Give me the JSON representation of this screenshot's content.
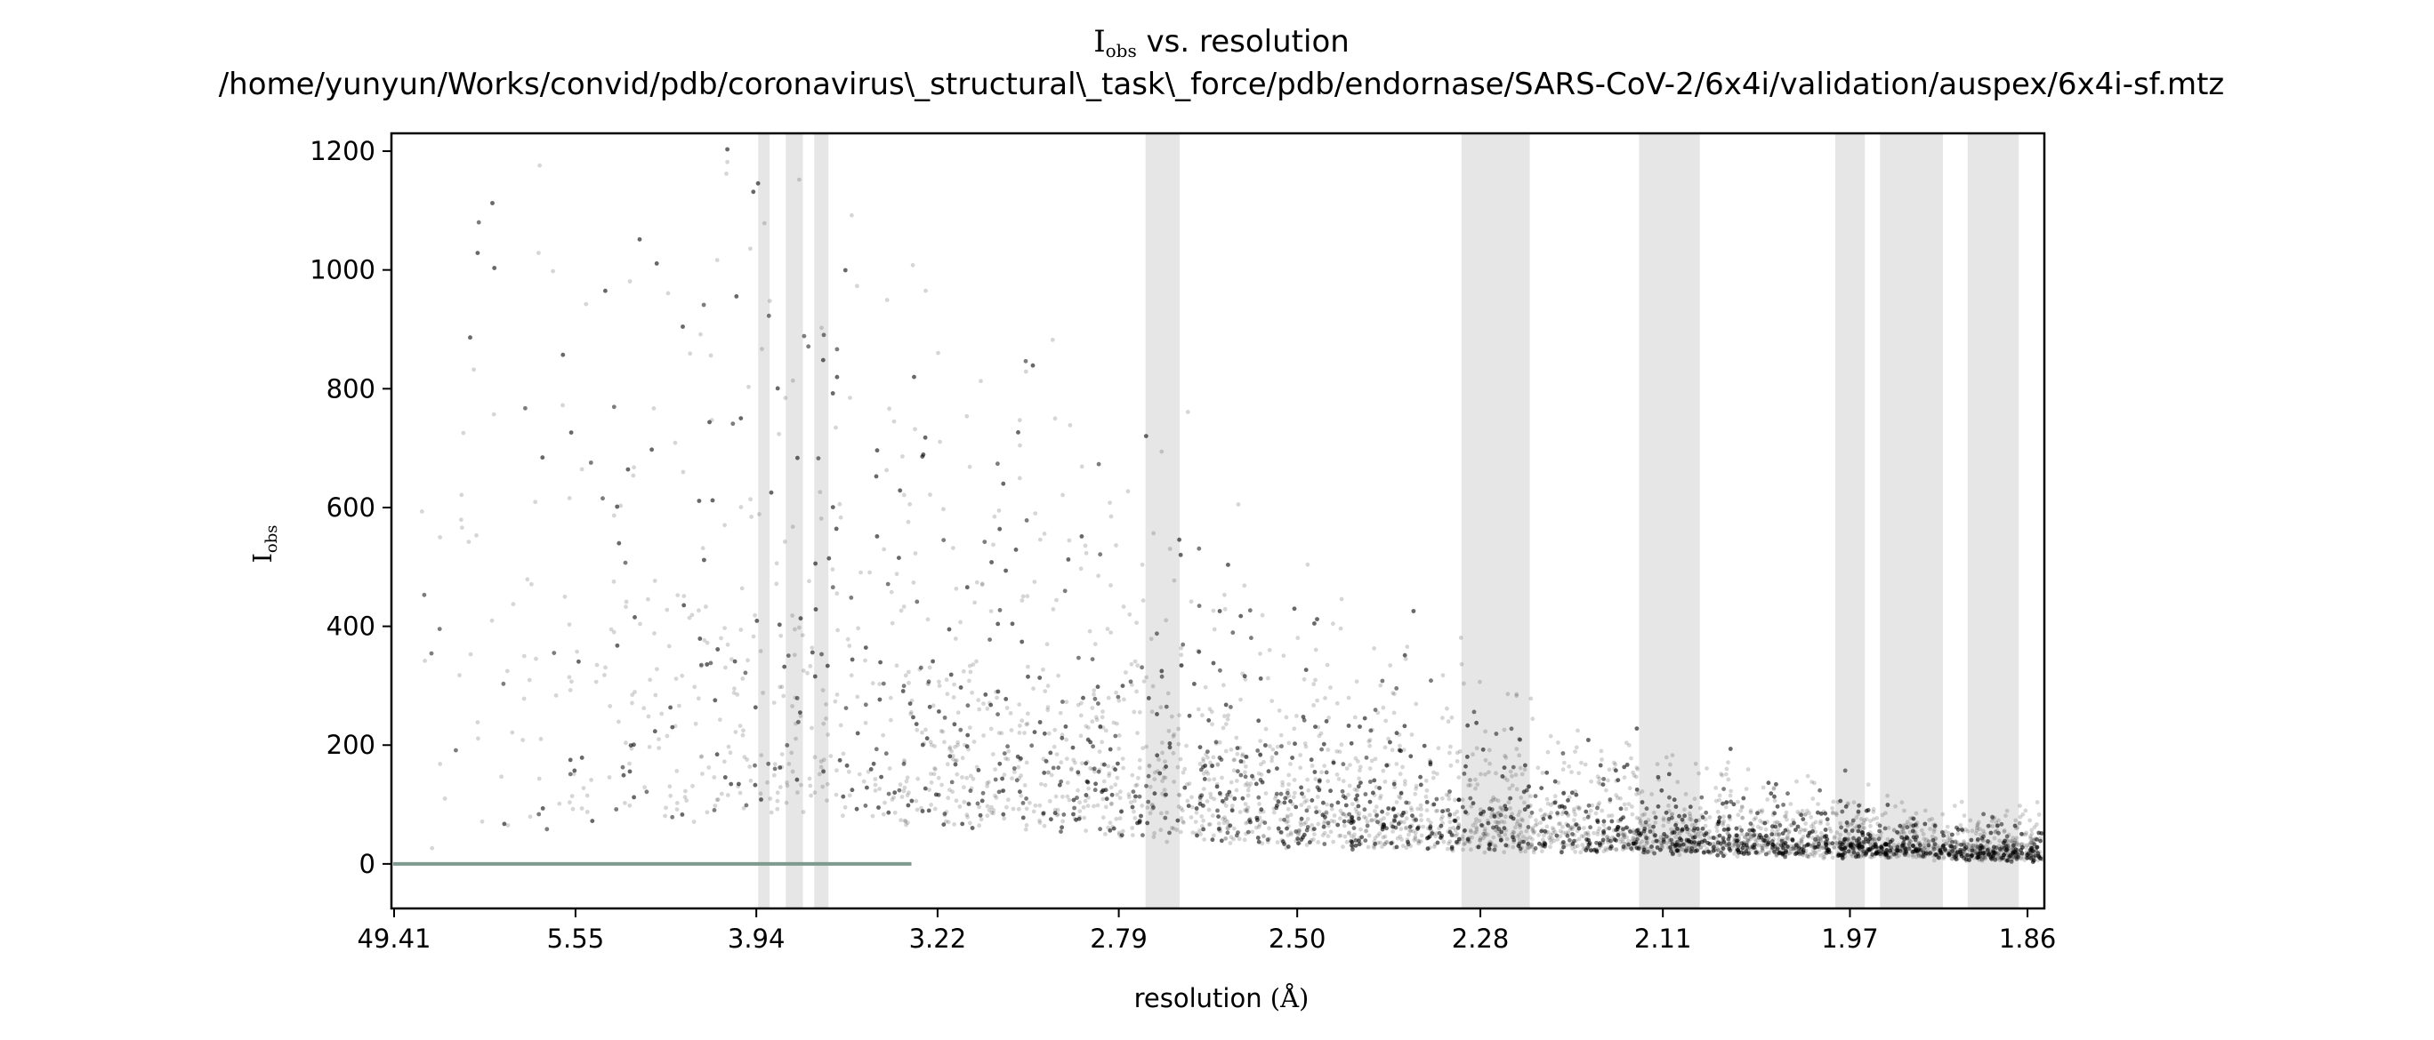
{
  "chart_data": {
    "type": "scatter",
    "title": {
      "main": "I",
      "sub": "obs",
      "rest": " vs. resolution",
      "path": "/home/yunyun/Works/convid/pdb/coronavirus\\_structural\\_task\\_force/pdb/endornase/SARS-CoV-2/6x4i/validation/auspex/6x4i-sf.mtz"
    },
    "xlabel": {
      "text": "resolution ",
      "unit": "(Å)"
    },
    "ylabel": {
      "main": "I",
      "sub": "obs"
    },
    "x_scale": "1/d^2",
    "x_ticks": [
      49.41,
      5.55,
      3.94,
      3.22,
      2.79,
      2.5,
      2.28,
      2.11,
      1.97,
      1.86
    ],
    "x_tick_labels": [
      "49.41",
      "5.55",
      "3.94",
      "3.22",
      "2.79",
      "2.50",
      "2.28",
      "2.11",
      "1.97",
      "1.86"
    ],
    "ylim": [
      -75,
      1230
    ],
    "y_ticks": [
      0,
      200,
      400,
      600,
      800,
      1000,
      1200
    ],
    "y_tick_labels": [
      "0",
      "200",
      "400",
      "600",
      "800",
      "1000",
      "1200"
    ],
    "ice_ring_bands_angstrom": [
      [
        3.93,
        3.87
      ],
      [
        3.79,
        3.71
      ],
      [
        3.66,
        3.6
      ],
      [
        2.74,
        2.68
      ],
      [
        2.3,
        2.23
      ],
      [
        2.13,
        2.08
      ],
      [
        1.98,
        1.96
      ],
      [
        1.95,
        1.91
      ],
      [
        1.895,
        1.865
      ]
    ],
    "zero_line": 0,
    "point_density_description": {
      "resolution_range": [
        49.41,
        1.85
      ],
      "low_res_spread_max": 1230,
      "high_res_median_trend": [
        [
          49.41,
          5
        ],
        [
          5.55,
          60
        ],
        [
          3.94,
          90
        ],
        [
          3.22,
          70
        ],
        [
          2.79,
          50
        ],
        [
          2.5,
          35
        ],
        [
          2.28,
          28
        ],
        [
          2.11,
          24
        ],
        [
          1.97,
          18
        ],
        [
          1.86,
          12
        ]
      ]
    },
    "colors": {
      "points": "#000000",
      "bands": "#e6e6e6",
      "zero_line": "#7f9a8f"
    },
    "grid": false,
    "legend": "none"
  }
}
